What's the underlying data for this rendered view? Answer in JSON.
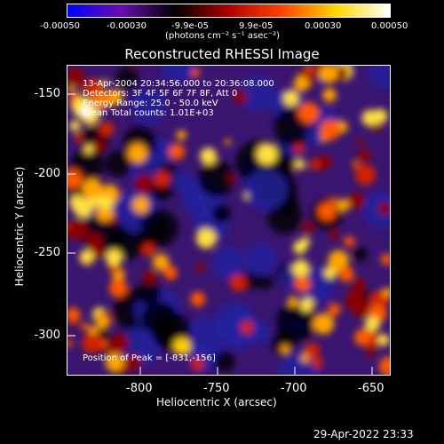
{
  "colorbar": {
    "ticks": [
      "-0.00050",
      "-0.00030",
      "-9.9e-05",
      "9.9e-05",
      "0.00030",
      "0.00050"
    ],
    "unit": "(photons cm⁻² s⁻¹ asec⁻²)",
    "colors": [
      "#0000ff",
      "#6a0dad",
      "#000000",
      "#b00000",
      "#ff4500",
      "#ffd700",
      "#ffffff"
    ]
  },
  "image": {
    "title": "Reconstructed RHESSI Image",
    "info_lines": [
      "13-Apr-2004 20:34:56.000 to 20:36:08.000",
      "Detectors: 3F 4F 5F 6F 7F 8F, Att 0",
      "Energy Range: 25.0 - 50.0 keV",
      "Clean    Total counts: 1.01E+03"
    ],
    "peak": "Position of Peak = [-831,-156]"
  },
  "axes": {
    "xlabel": "Heliocentric X (arcsec)",
    "ylabel": "Heliocentric Y (arcsec)",
    "xticks": [
      "-800",
      "-750",
      "-700",
      "-650"
    ],
    "yticks": [
      "-150",
      "-200",
      "-250",
      "-300"
    ]
  },
  "footer": {
    "timestamp": "29-Apr-2022 23:33"
  }
}
